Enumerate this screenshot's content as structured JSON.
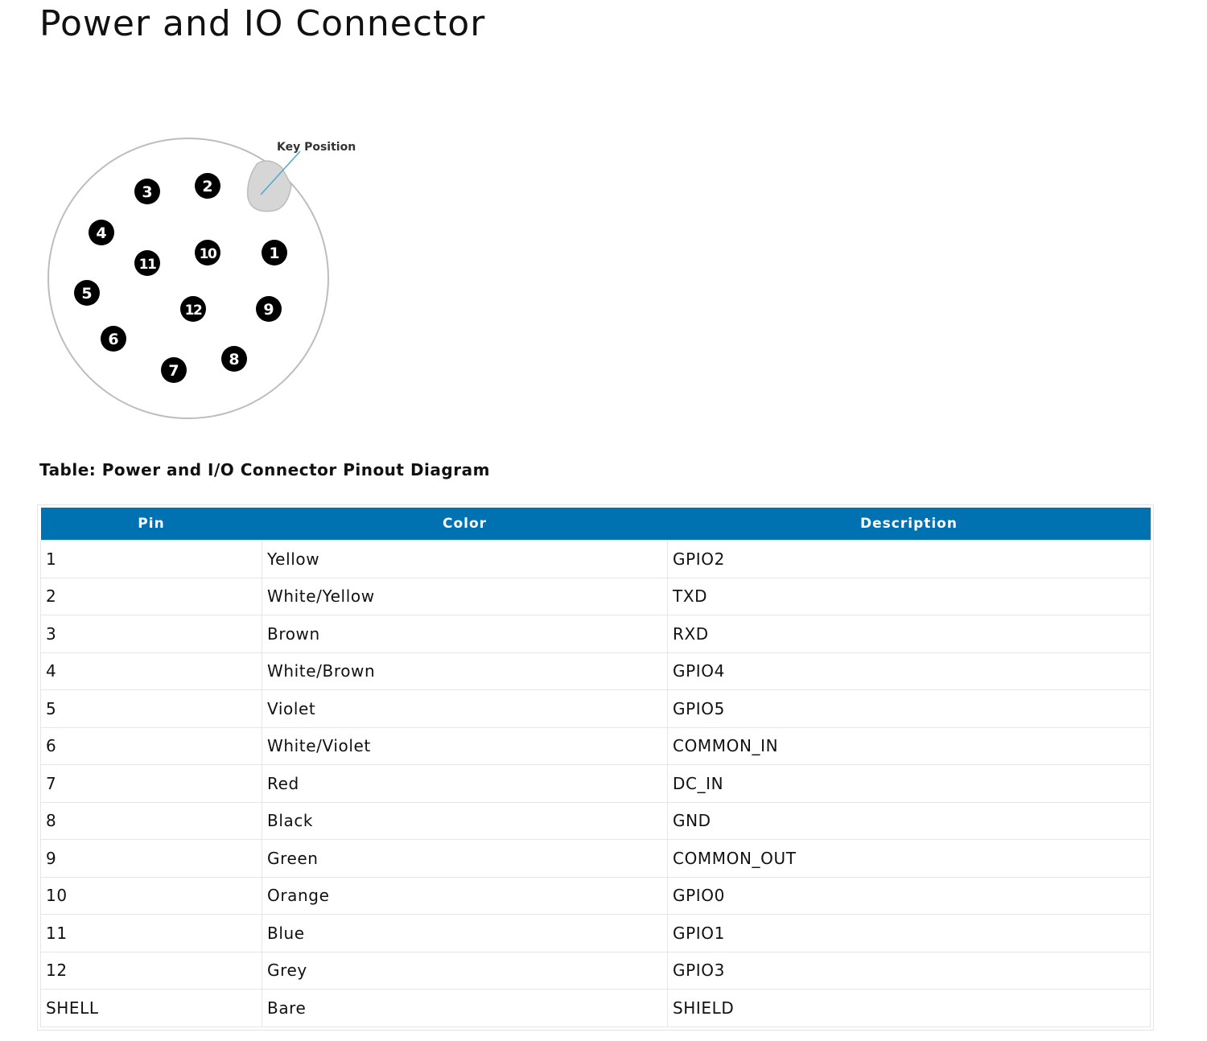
{
  "title": "Power and IO Connector",
  "diagram": {
    "key_label": "Key Position",
    "key_line_color": "#4aa8d0",
    "pins": [
      "1",
      "2",
      "3",
      "4",
      "5",
      "6",
      "7",
      "8",
      "9",
      "10",
      "11",
      "12"
    ]
  },
  "table": {
    "caption": "Table: Power and I/O Connector Pinout Diagram",
    "header_color": "#0172b1",
    "headers": [
      "Pin",
      "Color",
      "Description"
    ],
    "rows": [
      [
        "1",
        "Yellow",
        "GPIO2"
      ],
      [
        "2",
        "White/Yellow",
        "TXD"
      ],
      [
        "3",
        "Brown",
        "RXD"
      ],
      [
        "4",
        "White/Brown",
        "GPIO4"
      ],
      [
        "5",
        "Violet",
        "GPIO5"
      ],
      [
        "6",
        "White/Violet",
        "COMMON_IN"
      ],
      [
        "7",
        "Red",
        "DC_IN"
      ],
      [
        "8",
        "Black",
        "GND"
      ],
      [
        "9",
        "Green",
        "COMMON_OUT"
      ],
      [
        "10",
        "Orange",
        "GPIO0"
      ],
      [
        "11",
        "Blue",
        "GPIO1"
      ],
      [
        "12",
        "Grey",
        "GPIO3"
      ],
      [
        "SHELL",
        "Bare",
        "SHIELD"
      ]
    ]
  }
}
